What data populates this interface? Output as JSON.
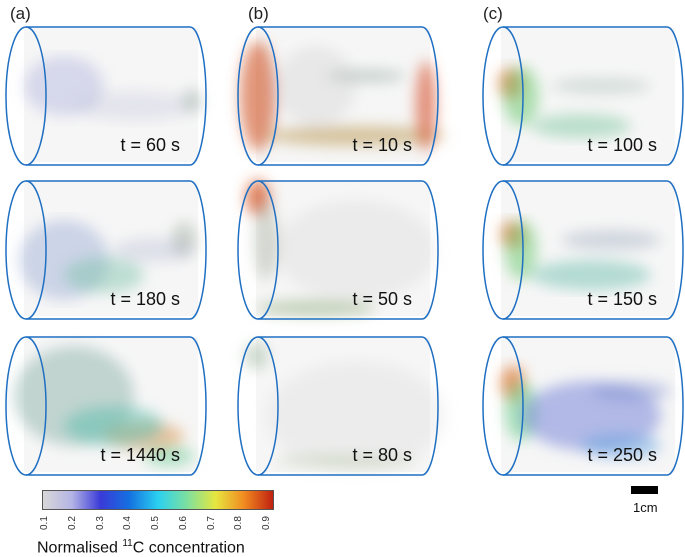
{
  "columns": [
    {
      "label": "(a)",
      "times": [
        "t = 60 s",
        "t = 180 s",
        "t = 1440 s"
      ]
    },
    {
      "label": "(b)",
      "times": [
        "t = 10 s",
        "t = 50 s",
        "t = 80 s"
      ]
    },
    {
      "label": "(c)",
      "times": [
        "t = 100 s",
        "t = 150 s",
        "t = 250 s"
      ]
    }
  ],
  "colorbar": {
    "ticks": [
      "0.1",
      "0.2",
      "0.3",
      "0.4",
      "0.5",
      "0.6",
      "0.7",
      "0.8",
      "0.9"
    ],
    "label_prefix": "Normalised ",
    "label_sup": "11",
    "label_suffix": "C concentration",
    "colors": [
      "#d8d8d8",
      "#b4b4e6",
      "#3a3ad8",
      "#1470e0",
      "#2ad0f0",
      "#7ce0a0",
      "#e6e640",
      "#f08a20",
      "#c02010"
    ]
  },
  "scale": {
    "label": "1cm"
  },
  "cylinder_color": "#1f6fc2"
}
